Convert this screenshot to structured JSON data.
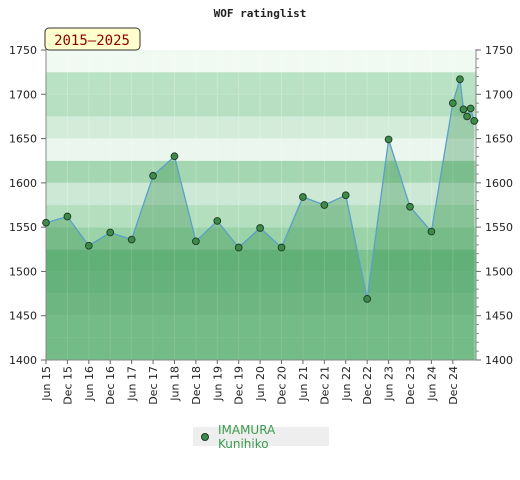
{
  "chart_data": {
    "type": "line",
    "title": "WOF ratinglist",
    "period_badge": "2015–2025",
    "ylim": [
      1400,
      1750
    ],
    "y_ticks": [
      1400,
      1450,
      1500,
      1550,
      1600,
      1650,
      1700,
      1750
    ],
    "x_tick_labels": [
      "Jun 15",
      "Dec 15",
      "Jun 16",
      "Dec 16",
      "Jun 17",
      "Dec 17",
      "Jun 18",
      "Dec 18",
      "Jun 19",
      "Dec 19",
      "Jun 20",
      "Dec 20",
      "Jun 21",
      "Dec 21",
      "Jun 22",
      "Dec 22",
      "Jun 23",
      "Dec 23",
      "Jun 24",
      "Dec 24"
    ],
    "series": [
      {
        "name": "IMAMURA Kunihiko",
        "color": "#3d8a4a",
        "points": [
          {
            "x": "2015-06",
            "y": 1555
          },
          {
            "x": "2015-12",
            "y": 1562
          },
          {
            "x": "2016-06",
            "y": 1529
          },
          {
            "x": "2016-12",
            "y": 1544
          },
          {
            "x": "2017-06",
            "y": 1536
          },
          {
            "x": "2017-12",
            "y": 1608
          },
          {
            "x": "2018-06",
            "y": 1630
          },
          {
            "x": "2018-12",
            "y": 1534
          },
          {
            "x": "2019-06",
            "y": 1557
          },
          {
            "x": "2019-12",
            "y": 1527
          },
          {
            "x": "2020-06",
            "y": 1549
          },
          {
            "x": "2020-12",
            "y": 1527
          },
          {
            "x": "2021-06",
            "y": 1584
          },
          {
            "x": "2021-12",
            "y": 1575
          },
          {
            "x": "2022-06",
            "y": 1586
          },
          {
            "x": "2022-12",
            "y": 1469
          },
          {
            "x": "2023-06",
            "y": 1649
          },
          {
            "x": "2023-12",
            "y": 1573
          },
          {
            "x": "2024-06",
            "y": 1545
          },
          {
            "x": "2024-12",
            "y": 1690
          },
          {
            "x": "2025-02",
            "y": 1717
          },
          {
            "x": "2025-03",
            "y": 1683
          },
          {
            "x": "2025-04",
            "y": 1675
          },
          {
            "x": "2025-05",
            "y": 1684
          },
          {
            "x": "2025-06",
            "y": 1670
          }
        ]
      }
    ],
    "grid": true,
    "legend_position": "bottom"
  }
}
